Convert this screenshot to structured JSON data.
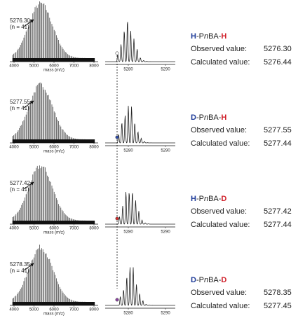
{
  "panels": [
    {
      "peak_label": "5276.30",
      "n_label": "(n = 41)",
      "left_xticks": [
        "4000",
        "5000",
        "6000",
        "7000",
        "8000"
      ],
      "left_xlabel": "mass (m/z)",
      "right_xticks": [
        "5280",
        "5290"
      ],
      "species": [
        "H",
        "-P",
        "n",
        "BA-",
        "H"
      ],
      "observed_label": "Observed value:",
      "observed_value": "5276.30",
      "calculated_label": "Calculated value:",
      "calculated_value": "5276.44"
    },
    {
      "peak_label": "5277.55",
      "n_label": "(n = 41)",
      "left_xticks": [
        "4000",
        "5000",
        "6000",
        "7000",
        "8000"
      ],
      "left_xlabel": "mass (m/z)",
      "right_xticks": [
        "5280",
        "5290"
      ],
      "species": [
        "D",
        "-P",
        "n",
        "BA-",
        "H"
      ],
      "observed_label": "Observed value:",
      "observed_value": "5277.55",
      "calculated_label": "Calculated value:",
      "calculated_value": "5277.44"
    },
    {
      "peak_label": "5277.42",
      "n_label": "(n = 41)",
      "left_xticks": [
        "4000",
        "5000",
        "6000",
        "7000",
        "8000"
      ],
      "left_xlabel": "mass (m/z)",
      "right_xticks": [
        "5280",
        "5290"
      ],
      "species": [
        "H",
        "-P",
        "n",
        "BA-",
        "D"
      ],
      "observed_label": "Observed value:",
      "observed_value": "5277.42",
      "calculated_label": "Calculated value:",
      "calculated_value": "5277.44"
    },
    {
      "peak_label": "5278.35",
      "n_label": "(n = 41)",
      "left_xticks": [
        "4000",
        "5000",
        "6000",
        "7000",
        "8000"
      ],
      "left_xlabel": "mass (m/z)",
      "right_xticks": [
        "5280",
        "5290"
      ],
      "species": [
        "D",
        "-P",
        "n",
        "BA-",
        "D"
      ],
      "observed_label": "Observed value:",
      "observed_value": "5278.35",
      "calculated_label": "Calculated value:",
      "calculated_value": "5277.45"
    }
  ]
}
